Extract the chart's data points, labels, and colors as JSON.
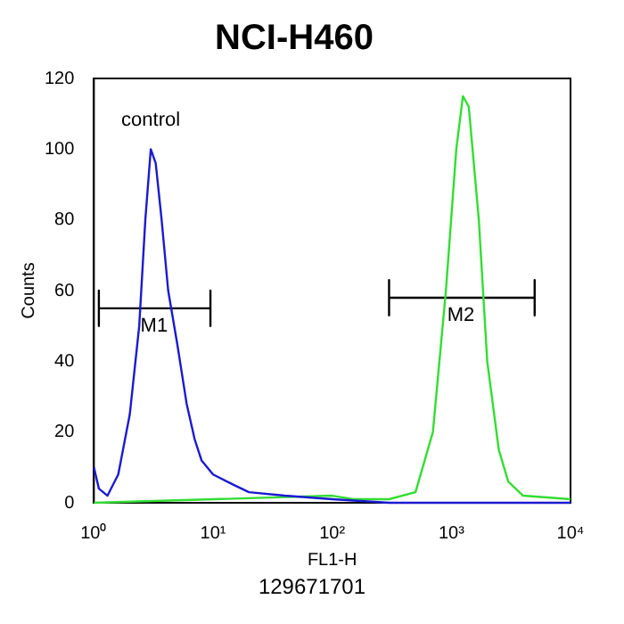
{
  "chart_data": {
    "type": "line",
    "title": "NCI-H460",
    "xlabel": "FL1-H",
    "ylabel": "Counts",
    "log": "x",
    "grid": false,
    "legend": false,
    "marker": "none",
    "line_style": "solid",
    "xlim": [
      1,
      10000
    ],
    "xticks": [
      {
        "value": 1,
        "label": "10⁰"
      },
      {
        "value": 10,
        "label": "10¹"
      },
      {
        "value": 100,
        "label": "10²"
      },
      {
        "value": 1000,
        "label": "10³"
      },
      {
        "value": 10000,
        "label": "10⁴"
      }
    ],
    "ylim": [
      0,
      120
    ],
    "yticks": [
      0,
      20,
      40,
      60,
      80,
      100,
      120
    ],
    "series": [
      {
        "name": "control",
        "color": "#1a1ad0",
        "x": [
          1,
          1.1,
          1.3,
          1.6,
          2,
          2.4,
          2.7,
          3,
          3.3,
          3.7,
          4.2,
          5,
          6,
          7,
          8,
          10,
          15,
          20,
          40,
          100,
          300,
          1000,
          10000
        ],
        "values": [
          10,
          4,
          2,
          8,
          25,
          50,
          80,
          100,
          96,
          80,
          60,
          45,
          28,
          18,
          12,
          8,
          5,
          3,
          2,
          1,
          0,
          0,
          0
        ]
      },
      {
        "color": "#33dd33",
        "x": [
          1,
          100,
          150,
          300,
          500,
          700,
          900,
          1100,
          1250,
          1400,
          1700,
          2000,
          2500,
          3000,
          4000,
          10000
        ],
        "values": [
          0,
          2,
          1,
          1,
          3,
          20,
          60,
          100,
          115,
          112,
          80,
          40,
          15,
          6,
          2,
          1
        ]
      },
      {
        "color": "#000000",
        "x": [
          1.1,
          1.1,
          1.1,
          9.5,
          9.5,
          9.5
        ],
        "values": [
          60,
          50,
          55,
          55,
          60,
          50
        ]
      },
      {
        "color": "#000000",
        "x": [
          300,
          300,
          300,
          5000,
          5000,
          5000
        ],
        "values": [
          63,
          53,
          58,
          58,
          63,
          53
        ]
      }
    ],
    "annotations": [
      {
        "text": "M1",
        "x": 3.2,
        "y": 55
      },
      {
        "text": "M2",
        "x": 1200,
        "y": 58
      },
      "129671701"
    ]
  }
}
